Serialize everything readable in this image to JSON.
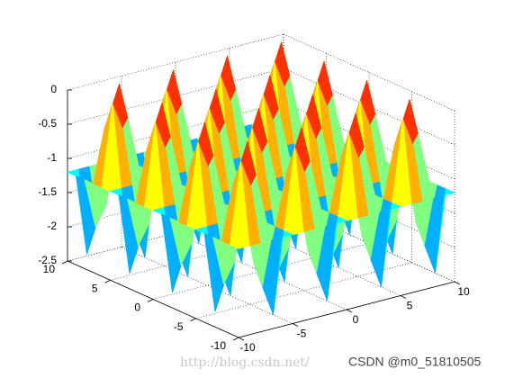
{
  "chart_data": {
    "type": "surface",
    "x": [
      -10,
      -9,
      -8,
      -7,
      -6,
      -5,
      -4,
      -3,
      -2,
      -1,
      0,
      1,
      2,
      3,
      4,
      5,
      6,
      7,
      8,
      9,
      10
    ],
    "y": [
      -10,
      -9,
      -8,
      -7,
      -6,
      -5,
      -4,
      -3,
      -2,
      -1,
      0,
      1,
      2,
      3,
      4,
      5,
      6,
      7,
      8,
      9,
      10
    ],
    "z": [
      [
        -1.2,
        -1.2,
        -1.2,
        -1.2,
        -1.2,
        -1.2,
        -1.2,
        -1.2,
        -1.2,
        -1.2,
        -1.2,
        -1.2,
        -1.2,
        -1.2,
        -1.2,
        -1.2,
        -1.2,
        -1.2,
        -1.2,
        -1.2,
        -1.2
      ],
      [
        -1.2,
        -0.02,
        -0.47,
        -1.93,
        -2.38,
        -1.2,
        -0.02,
        -0.47,
        -1.93,
        -2.38,
        -1.2,
        -0.02,
        -0.47,
        -1.93,
        -2.38,
        -1.2,
        -0.02,
        -0.47,
        -1.93,
        -2.38,
        -1.2
      ],
      [
        -1.2,
        -0.47,
        -0.75,
        -1.65,
        -1.93,
        -1.2,
        -0.47,
        -0.75,
        -1.65,
        -1.93,
        -1.2,
        -0.47,
        -0.75,
        -1.65,
        -1.93,
        -1.2,
        -0.47,
        -0.75,
        -1.65,
        -1.93,
        -1.2
      ],
      [
        -1.2,
        -1.93,
        -1.65,
        -0.75,
        -0.47,
        -1.2,
        -1.93,
        -1.65,
        -0.75,
        -0.47,
        -1.2,
        -1.93,
        -1.65,
        -0.75,
        -0.47,
        -1.2,
        -1.93,
        -1.65,
        -0.75,
        -0.47,
        -1.2
      ],
      [
        -1.2,
        -2.38,
        -1.93,
        -0.47,
        -0.02,
        -1.2,
        -2.38,
        -1.93,
        -0.47,
        -0.02,
        -1.2,
        -2.38,
        -1.93,
        -0.47,
        -0.02,
        -1.2,
        -2.38,
        -1.93,
        -0.47,
        -0.02,
        -1.2
      ],
      [
        -1.2,
        -1.2,
        -1.2,
        -1.2,
        -1.2,
        -1.2,
        -1.2,
        -1.2,
        -1.2,
        -1.2,
        -1.2,
        -1.2,
        -1.2,
        -1.2,
        -1.2,
        -1.2,
        -1.2,
        -1.2,
        -1.2,
        -1.2,
        -1.2
      ],
      [
        -1.2,
        -0.02,
        -0.47,
        -1.93,
        -2.38,
        -1.2,
        -0.02,
        -0.47,
        -1.93,
        -2.38,
        -1.2,
        -0.02,
        -0.47,
        -1.93,
        -2.38,
        -1.2,
        -0.02,
        -0.47,
        -1.93,
        -2.38,
        -1.2
      ],
      [
        -1.2,
        -0.47,
        -0.75,
        -1.65,
        -1.93,
        -1.2,
        -0.47,
        -0.75,
        -1.65,
        -1.93,
        -1.2,
        -0.47,
        -0.75,
        -1.65,
        -1.93,
        -1.2,
        -0.47,
        -0.75,
        -1.65,
        -1.93,
        -1.2
      ],
      [
        -1.2,
        -1.93,
        -1.65,
        -0.75,
        -0.47,
        -1.2,
        -1.93,
        -1.65,
        -0.75,
        -0.47,
        -1.2,
        -1.93,
        -1.65,
        -0.75,
        -0.47,
        -1.2,
        -1.93,
        -1.65,
        -0.75,
        -0.47,
        -1.2
      ],
      [
        -1.2,
        -2.38,
        -1.93,
        -0.47,
        -0.02,
        -1.2,
        -2.38,
        -1.93,
        -0.47,
        -0.02,
        -1.2,
        -2.38,
        -1.93,
        -0.47,
        -0.02,
        -1.2,
        -2.38,
        -1.93,
        -0.47,
        -0.02,
        -1.2
      ],
      [
        -1.2,
        -1.2,
        -1.2,
        -1.2,
        -1.2,
        -1.2,
        -1.2,
        -1.2,
        -1.2,
        -1.2,
        -1.2,
        -1.2,
        -1.2,
        -1.2,
        -1.2,
        -1.2,
        -1.2,
        -1.2,
        -1.2,
        -1.2,
        -1.2
      ],
      [
        -1.2,
        -0.02,
        -0.47,
        -1.93,
        -2.38,
        -1.2,
        -0.02,
        -0.47,
        -1.93,
        -2.38,
        -1.2,
        -0.02,
        -0.47,
        -1.93,
        -2.38,
        -1.2,
        -0.02,
        -0.47,
        -1.93,
        -2.38,
        -1.2
      ],
      [
        -1.2,
        -0.47,
        -0.75,
        -1.65,
        -1.93,
        -1.2,
        -0.47,
        -0.75,
        -1.65,
        -1.93,
        -1.2,
        -0.47,
        -0.75,
        -1.65,
        -1.93,
        -1.2,
        -0.47,
        -0.75,
        -1.65,
        -1.93,
        -1.2
      ],
      [
        -1.2,
        -1.93,
        -1.65,
        -0.75,
        -0.47,
        -1.2,
        -1.93,
        -1.65,
        -0.75,
        -0.47,
        -1.2,
        -1.93,
        -1.65,
        -0.75,
        -0.47,
        -1.2,
        -1.93,
        -1.65,
        -0.75,
        -0.47,
        -1.2
      ],
      [
        -1.2,
        -2.38,
        -1.93,
        -0.47,
        -0.02,
        -1.2,
        -2.38,
        -1.93,
        -0.47,
        -0.02,
        -1.2,
        -2.38,
        -1.93,
        -0.47,
        -0.02,
        -1.2,
        -2.38,
        -1.93,
        -0.47,
        -0.02,
        -1.2
      ],
      [
        -1.2,
        -1.2,
        -1.2,
        -1.2,
        -1.2,
        -1.2,
        -1.2,
        -1.2,
        -1.2,
        -1.2,
        -1.2,
        -1.2,
        -1.2,
        -1.2,
        -1.2,
        -1.2,
        -1.2,
        -1.2,
        -1.2,
        -1.2,
        -1.2
      ],
      [
        -1.2,
        -0.02,
        -0.47,
        -1.93,
        -2.38,
        -1.2,
        -0.02,
        -0.47,
        -1.93,
        -2.38,
        -1.2,
        -0.02,
        -0.47,
        -1.93,
        -2.38,
        -1.2,
        -0.02,
        -0.47,
        -1.93,
        -2.38,
        -1.2
      ],
      [
        -1.2,
        -0.47,
        -0.75,
        -1.65,
        -1.93,
        -1.2,
        -0.47,
        -0.75,
        -1.65,
        -1.93,
        -1.2,
        -0.47,
        -0.75,
        -1.65,
        -1.93,
        -1.2,
        -0.47,
        -0.75,
        -1.65,
        -1.93,
        -1.2
      ],
      [
        -1.2,
        -1.93,
        -1.65,
        -0.75,
        -0.47,
        -1.2,
        -1.93,
        -1.65,
        -0.75,
        -0.47,
        -1.2,
        -1.93,
        -1.65,
        -0.75,
        -0.47,
        -1.2,
        -1.93,
        -1.65,
        -0.75,
        -0.47,
        -1.2
      ],
      [
        -1.2,
        -2.38,
        -1.93,
        -0.47,
        -0.02,
        -1.2,
        -2.38,
        -1.93,
        -0.47,
        -0.02,
        -1.2,
        -2.38,
        -1.93,
        -0.47,
        -0.02,
        -1.2,
        -2.38,
        -1.93,
        -0.47,
        -0.02,
        -1.2
      ],
      [
        -1.2,
        -1.2,
        -1.2,
        -1.2,
        -1.2,
        -1.2,
        -1.2,
        -1.2,
        -1.2,
        -1.2,
        -1.2,
        -1.2,
        -1.2,
        -1.2,
        -1.2,
        -1.2,
        -1.2,
        -1.2,
        -1.2,
        -1.2,
        -1.2
      ]
    ],
    "xlim": [
      -10,
      10
    ],
    "ylim": [
      -10,
      10
    ],
    "zlim": [
      -2.5,
      0
    ],
    "xticks": [
      -10,
      -5,
      0,
      5,
      10
    ],
    "yticks": [
      -10,
      -5,
      0,
      5,
      10
    ],
    "zticks": [
      -2.5,
      -2,
      -1.5,
      -1,
      -0.5,
      0
    ],
    "grid": true,
    "colormap": "jet",
    "watermark": "CSDN @m0_51810505",
    "watermark_url": "http://blog.csdn.net/"
  }
}
